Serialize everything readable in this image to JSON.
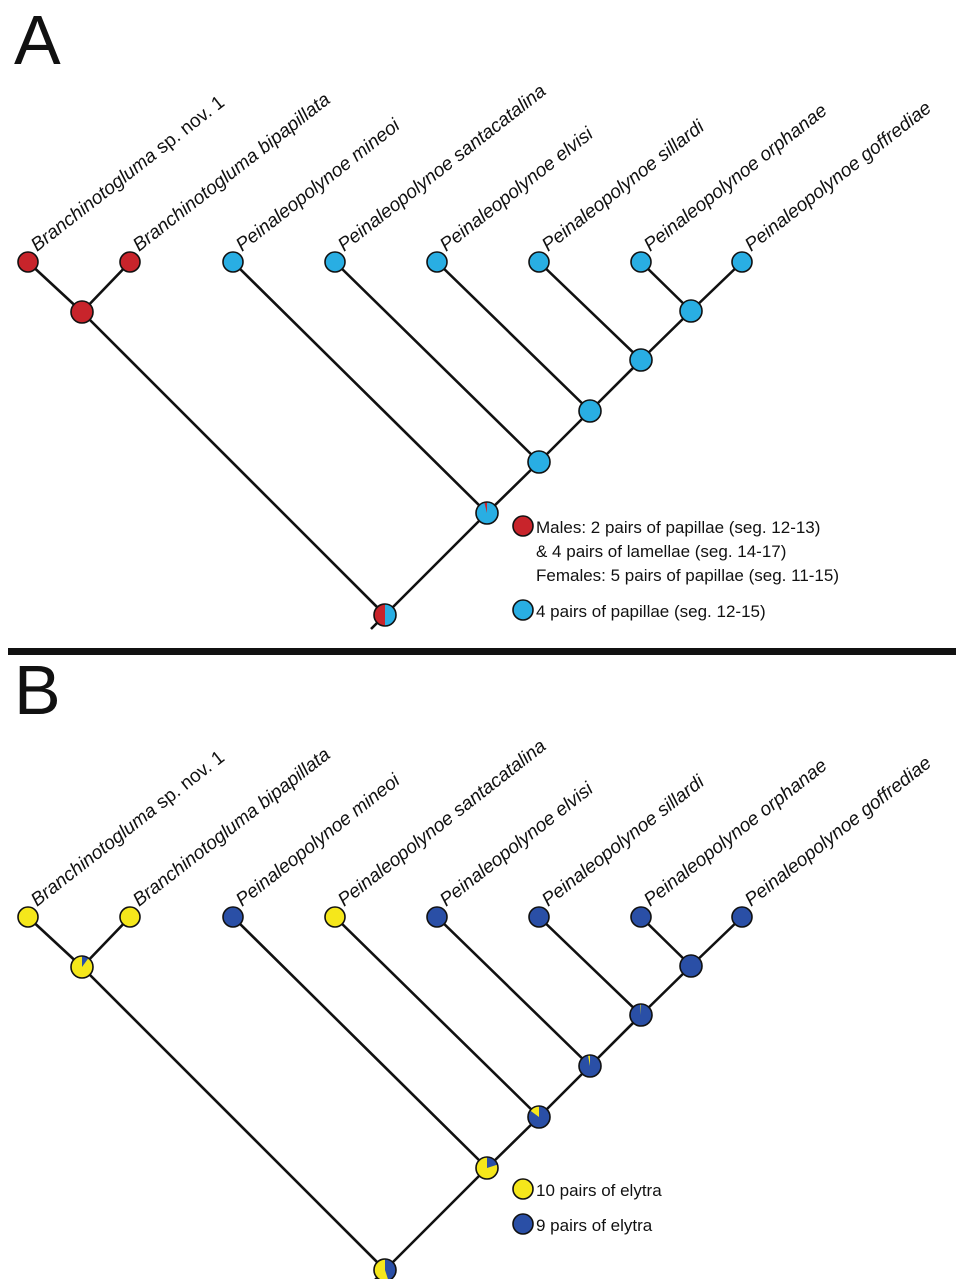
{
  "figure": {
    "divider_color": "#111111"
  },
  "taxa": [
    {
      "genus": "Branchinotogluma",
      "rest": " sp. nov. 1",
      "epithet": ""
    },
    {
      "genus": "Branchinotogluma",
      "rest": "",
      "epithet": " bipapillata"
    },
    {
      "genus": "Peinaleopolynoe",
      "rest": "",
      "epithet": " mineoi"
    },
    {
      "genus": "Peinaleopolynoe",
      "rest": "",
      "epithet": " santacatalina"
    },
    {
      "genus": "Peinaleopolynoe",
      "rest": "",
      "epithet": " elvisi"
    },
    {
      "genus": "Peinaleopolynoe",
      "rest": "",
      "epithet": " sillardi"
    },
    {
      "genus": "Peinaleopolynoe",
      "rest": "",
      "epithet": " orphanae"
    },
    {
      "genus": "Peinaleopolynoe",
      "rest": "",
      "epithet": " goffrediae"
    }
  ],
  "panels": [
    {
      "letter": "A",
      "colors": {
        "state1": "#c8242b",
        "state2": "#29aee3"
      },
      "tips": [
        "state1",
        "state1",
        "state2",
        "state2",
        "state2",
        "state2",
        "state2",
        "state2"
      ],
      "internal_nodes": [
        {
          "id": "branchinotogluma",
          "state2_fraction": 0.0
        },
        {
          "id": "root",
          "state2_fraction": 0.5
        },
        {
          "id": "peinaleopolynoe",
          "state2_fraction": 0.96
        },
        {
          "id": "clade_santacatalina",
          "state2_fraction": 1.0
        },
        {
          "id": "clade_elvisi",
          "state2_fraction": 1.0
        },
        {
          "id": "clade_sillardi",
          "state2_fraction": 1.0
        },
        {
          "id": "clade_orphanae_goffrediae",
          "state2_fraction": 1.0
        }
      ],
      "legend": [
        {
          "state": "state1",
          "lines": [
            "Males: 2 pairs of papillae (seg. 12-13)",
            "& 4 pairs of lamellae (seg. 14-17)",
            "Females: 5 pairs of papillae (seg. 11-15)"
          ]
        },
        {
          "state": "state2",
          "lines": [
            "4 pairs of papillae (seg. 12-15)"
          ]
        }
      ]
    },
    {
      "letter": "B",
      "colors": {
        "state1": "#f5e71b",
        "state2": "#2a4fa6"
      },
      "tips": [
        "state1",
        "state1",
        "state2",
        "state1",
        "state2",
        "state2",
        "state2",
        "state2"
      ],
      "internal_nodes": [
        {
          "id": "branchinotogluma",
          "state2_fraction": 0.1
        },
        {
          "id": "root",
          "state2_fraction": 0.45
        },
        {
          "id": "peinaleopolynoe",
          "state2_fraction": 0.2
        },
        {
          "id": "clade_santacatalina",
          "state2_fraction": 0.85
        },
        {
          "id": "clade_elvisi",
          "state2_fraction": 0.97
        },
        {
          "id": "clade_sillardi",
          "state2_fraction": 0.99
        },
        {
          "id": "clade_orphanae_goffrediae",
          "state2_fraction": 1.0
        }
      ],
      "legend": [
        {
          "state": "state1",
          "lines": [
            "10 pairs of elytra"
          ]
        },
        {
          "state": "state2",
          "lines": [
            "9 pairs of elytra"
          ]
        }
      ]
    }
  ]
}
